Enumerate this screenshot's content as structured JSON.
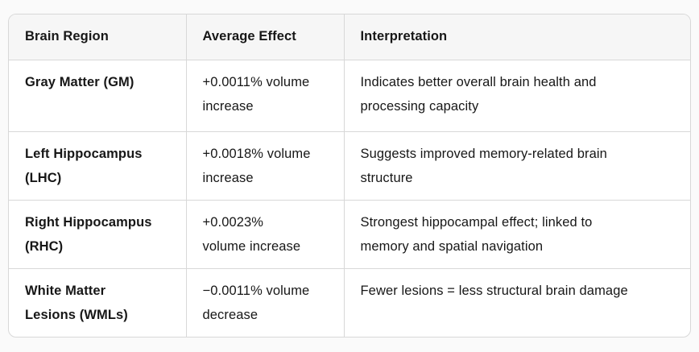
{
  "colors": {
    "page_background": "#fafafa",
    "table_background": "#ffffff",
    "header_background": "#f6f6f6",
    "border": "#d8d8d8",
    "text": "#171717"
  },
  "table": {
    "headers": [
      "Brain Region",
      "Average Effect",
      "Interpretation"
    ],
    "rows": [
      {
        "region": "Gray Matter (GM)",
        "effect": "+0.0011% volume\nincrease",
        "interpretation": "Indicates better overall brain health and\nprocessing capacity"
      },
      {
        "region": "Left Hippocampus\n(LHC)",
        "effect": "+0.0018% volume\nincrease",
        "interpretation": "Suggests improved memory-related brain\nstructure"
      },
      {
        "region": "Right Hippocampus\n(RHC)",
        "effect": "+0.0023%\nvolume increase",
        "interpretation": "Strongest hippocampal effect; linked to\nmemory and spatial navigation"
      },
      {
        "region": "White Matter\nLesions (WMLs)",
        "effect": "−0.0011% volume\ndecrease",
        "interpretation": "Fewer lesions = less structural brain damage"
      }
    ]
  }
}
